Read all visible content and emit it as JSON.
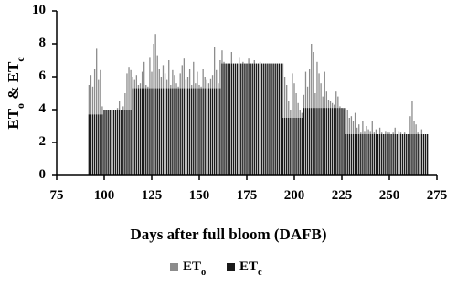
{
  "chart_data": {
    "type": "bar",
    "xlabel": "Days after full bloom (DAFB)",
    "ylabel": "ETo & ETc",
    "x": [
      92,
      93,
      94,
      95,
      96,
      97,
      98,
      99,
      100,
      101,
      102,
      103,
      104,
      105,
      106,
      107,
      108,
      109,
      110,
      111,
      112,
      113,
      114,
      115,
      116,
      117,
      118,
      119,
      120,
      121,
      122,
      123,
      124,
      125,
      126,
      127,
      128,
      129,
      130,
      131,
      132,
      133,
      134,
      135,
      136,
      137,
      138,
      139,
      140,
      141,
      142,
      143,
      144,
      145,
      146,
      147,
      148,
      149,
      150,
      151,
      152,
      153,
      154,
      155,
      156,
      157,
      158,
      159,
      160,
      161,
      162,
      163,
      164,
      165,
      166,
      167,
      168,
      169,
      170,
      171,
      172,
      173,
      174,
      175,
      176,
      177,
      178,
      179,
      180,
      181,
      182,
      183,
      184,
      185,
      186,
      187,
      188,
      189,
      190,
      191,
      192,
      193,
      194,
      195,
      196,
      197,
      198,
      199,
      200,
      201,
      202,
      203,
      204,
      205,
      206,
      207,
      208,
      209,
      210,
      211,
      212,
      213,
      214,
      215,
      216,
      217,
      218,
      219,
      220,
      221,
      222,
      223,
      224,
      225,
      226,
      227,
      228,
      229,
      230,
      231,
      232,
      233,
      234,
      235,
      236,
      237,
      238,
      239,
      240,
      241,
      242,
      243,
      244,
      245,
      246,
      247,
      248,
      249,
      250,
      251,
      252,
      253,
      254,
      255,
      256,
      257,
      258,
      259,
      260,
      261,
      262,
      263,
      264,
      265,
      266,
      267,
      268,
      269,
      270
    ],
    "series": [
      {
        "name": "ETo",
        "color": "#8c8c8c",
        "values": [
          5.5,
          6.1,
          5.4,
          6.5,
          7.7,
          5.8,
          6.4,
          4.2,
          4,
          4,
          4,
          4,
          4,
          4,
          4,
          4.1,
          4.5,
          4,
          4.2,
          5,
          6.2,
          6.6,
          6.4,
          6,
          5.8,
          6.1,
          5.5,
          5.6,
          6.3,
          6.9,
          5.5,
          5.4,
          7.2,
          6.3,
          8,
          8.6,
          7.3,
          6.5,
          6,
          6.7,
          6.2,
          5.8,
          7,
          5.5,
          6.4,
          6.1,
          5.6,
          5.4,
          6.2,
          6.7,
          7.1,
          5.8,
          6,
          6.5,
          5.5,
          6.9,
          5.6,
          6.3,
          5.5,
          5.4,
          6.5,
          6,
          5.8,
          5.6,
          5.9,
          6.1,
          7.8,
          6.4,
          5.6,
          7,
          7.6,
          6.9,
          6.8,
          6.8,
          6.8,
          7.5,
          6.8,
          6.8,
          6.8,
          7.2,
          6.8,
          6.9,
          6.8,
          6.8,
          7.1,
          6.8,
          6.8,
          7,
          6.8,
          6.8,
          6.9,
          6.8,
          6.8,
          6.8,
          6.8,
          6.8,
          6.8,
          6.8,
          6.8,
          6.8,
          6.8,
          6.8,
          6.8,
          6,
          5.5,
          4.5,
          4,
          6.2,
          5.6,
          5,
          4.4,
          4,
          3.8,
          4.9,
          6.3,
          5.4,
          6.5,
          8,
          7.5,
          5,
          6.9,
          6.2,
          5.6,
          4.8,
          6.3,
          5.1,
          4.6,
          4.5,
          4.4,
          4.3,
          5.1,
          4.8,
          4.2,
          4.1,
          4,
          4.1,
          4,
          3.5,
          3.6,
          3.3,
          3.8,
          2.9,
          3.1,
          2.6,
          3.3,
          2.7,
          3,
          2.8,
          2.7,
          3.3,
          2.6,
          2.8,
          2.5,
          2.9,
          2.6,
          2.5,
          2.7,
          2.6,
          2.6,
          2.5,
          2.6,
          2.9,
          2.5,
          2.7,
          2.6,
          2.5,
          2.6,
          2.5,
          2.5,
          3.6,
          4.5,
          3.3,
          3.1,
          2.6,
          2.5,
          2.8,
          2.5,
          2.5,
          2.5
        ]
      },
      {
        "name": "ETc",
        "color": "#1a1a1a",
        "values": [
          3.7,
          3.7,
          3.7,
          3.7,
          3.7,
          3.7,
          3.7,
          3.7,
          4,
          4,
          4,
          4,
          4,
          4,
          4,
          4,
          4,
          4,
          4,
          4,
          4,
          4,
          4,
          5.3,
          5.3,
          5.3,
          5.3,
          5.3,
          5.3,
          5.3,
          5.3,
          5.3,
          5.3,
          5.3,
          5.3,
          5.3,
          5.3,
          5.3,
          5.3,
          5.3,
          5.3,
          5.3,
          5.3,
          5.3,
          5.3,
          5.3,
          5.3,
          5.3,
          5.3,
          5.3,
          5.3,
          5.3,
          5.3,
          5.3,
          5.3,
          5.3,
          5.3,
          5.3,
          5.3,
          5.3,
          5.3,
          5.3,
          5.3,
          5.3,
          5.3,
          5.3,
          5.3,
          5.3,
          5.3,
          5.3,
          6.8,
          6.8,
          6.8,
          6.8,
          6.8,
          6.8,
          6.8,
          6.8,
          6.8,
          6.8,
          6.8,
          6.8,
          6.8,
          6.8,
          6.8,
          6.8,
          6.8,
          6.8,
          6.8,
          6.8,
          6.8,
          6.8,
          6.8,
          6.8,
          6.8,
          6.8,
          6.8,
          6.8,
          6.8,
          6.8,
          6.8,
          6.8,
          3.5,
          3.5,
          3.5,
          3.5,
          3.5,
          3.5,
          3.5,
          3.5,
          3.5,
          3.5,
          3.5,
          4.1,
          4.1,
          4.1,
          4.1,
          4.1,
          4.1,
          4.1,
          4.1,
          4.1,
          4.1,
          4.1,
          4.1,
          4.1,
          4.1,
          4.1,
          4.1,
          4.1,
          4.1,
          4.1,
          4.1,
          4.1,
          4.1,
          2.5,
          2.5,
          2.5,
          2.5,
          2.5,
          2.5,
          2.5,
          2.5,
          2.5,
          2.5,
          2.5,
          2.5,
          2.5,
          2.5,
          2.5,
          2.5,
          2.5,
          2.5,
          2.5,
          2.5,
          2.5,
          2.5,
          2.5,
          2.5,
          2.5,
          2.5,
          2.5,
          2.5,
          2.5,
          2.5,
          2.5,
          2.5,
          2.5,
          2.5,
          2.5,
          2.5,
          2.5,
          2.5,
          2.5,
          2.5,
          2.5,
          2.5,
          2.5,
          2.5
        ]
      }
    ],
    "xlim": [
      75,
      275
    ],
    "xticks": [
      75,
      100,
      125,
      150,
      175,
      200,
      225,
      250,
      275
    ],
    "ylim": [
      0,
      10
    ],
    "yticks": [
      0,
      2,
      4,
      6,
      8,
      10
    ],
    "grid": false,
    "legend": "bottom"
  }
}
